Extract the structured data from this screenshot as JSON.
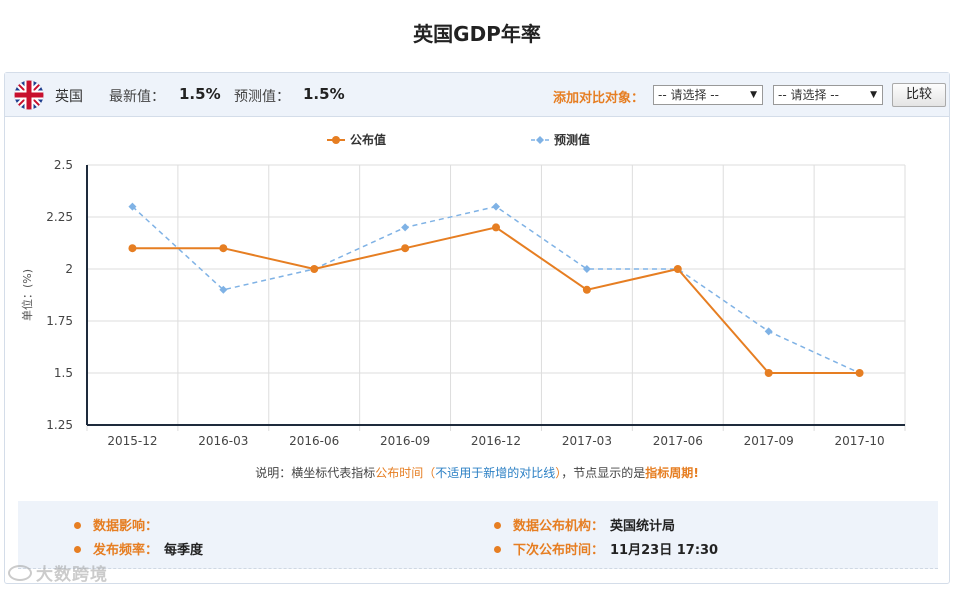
{
  "page": {
    "title": "英国GDP年率"
  },
  "header": {
    "country": "英国",
    "latest_label": "最新值：",
    "latest_value": "1.5%",
    "forecast_label": "预测值：",
    "forecast_value": "1.5%",
    "compare_label": "添加对比对象：",
    "select1_value": "-- 请选择 --",
    "select2_value": "-- 请选择 --",
    "compare_button": "比较",
    "flag_icon": "uk-flag-icon"
  },
  "legend": {
    "published": "公布值",
    "forecast": "预测值"
  },
  "colors": {
    "published": "#e67e22",
    "forecast": "#7fb2e5",
    "axis": "#1e2b3c",
    "grid": "#dddddd"
  },
  "chart_data": {
    "type": "line",
    "title": "",
    "xlabel": "",
    "ylabel": "单位：(%)",
    "categories": [
      "2015-12",
      "2016-03",
      "2016-06",
      "2016-09",
      "2016-12",
      "2017-03",
      "2017-06",
      "2017-09",
      "2017-10"
    ],
    "yticks": [
      "2.5",
      "2.25",
      "2",
      "1.75",
      "1.5",
      "1.25"
    ],
    "ylim": [
      1.25,
      2.5
    ],
    "grid": true,
    "legend_position": "top-center",
    "series": [
      {
        "name": "公布值",
        "style": "solid",
        "marker": "circle",
        "values": [
          2.1,
          2.1,
          2.0,
          2.1,
          2.2,
          1.9,
          2.0,
          1.5,
          1.5
        ]
      },
      {
        "name": "预测值",
        "style": "dashed",
        "marker": "diamond",
        "values": [
          2.3,
          1.9,
          2.0,
          2.2,
          2.3,
          2.0,
          2.0,
          1.7,
          1.5
        ]
      }
    ]
  },
  "note": {
    "prefix": "说明：横坐标代表指标",
    "time": "公布时间",
    "paren_open": "（",
    "not_applicable": "不适用于新增的对比线",
    "paren_close": "）",
    "middle": "，节点显示的是",
    "period": "指标周期",
    "end": "!"
  },
  "info": {
    "impact_label": "数据影响：",
    "impact_value": "",
    "frequency_label": "发布频率：",
    "frequency_value": "每季度",
    "agency_label": "数据公布机构：",
    "agency_value": "英国统计局",
    "next_label": "下次公布时间：",
    "next_value": "11月23日 17:30"
  },
  "watermark": {
    "text": "大数跨境"
  }
}
